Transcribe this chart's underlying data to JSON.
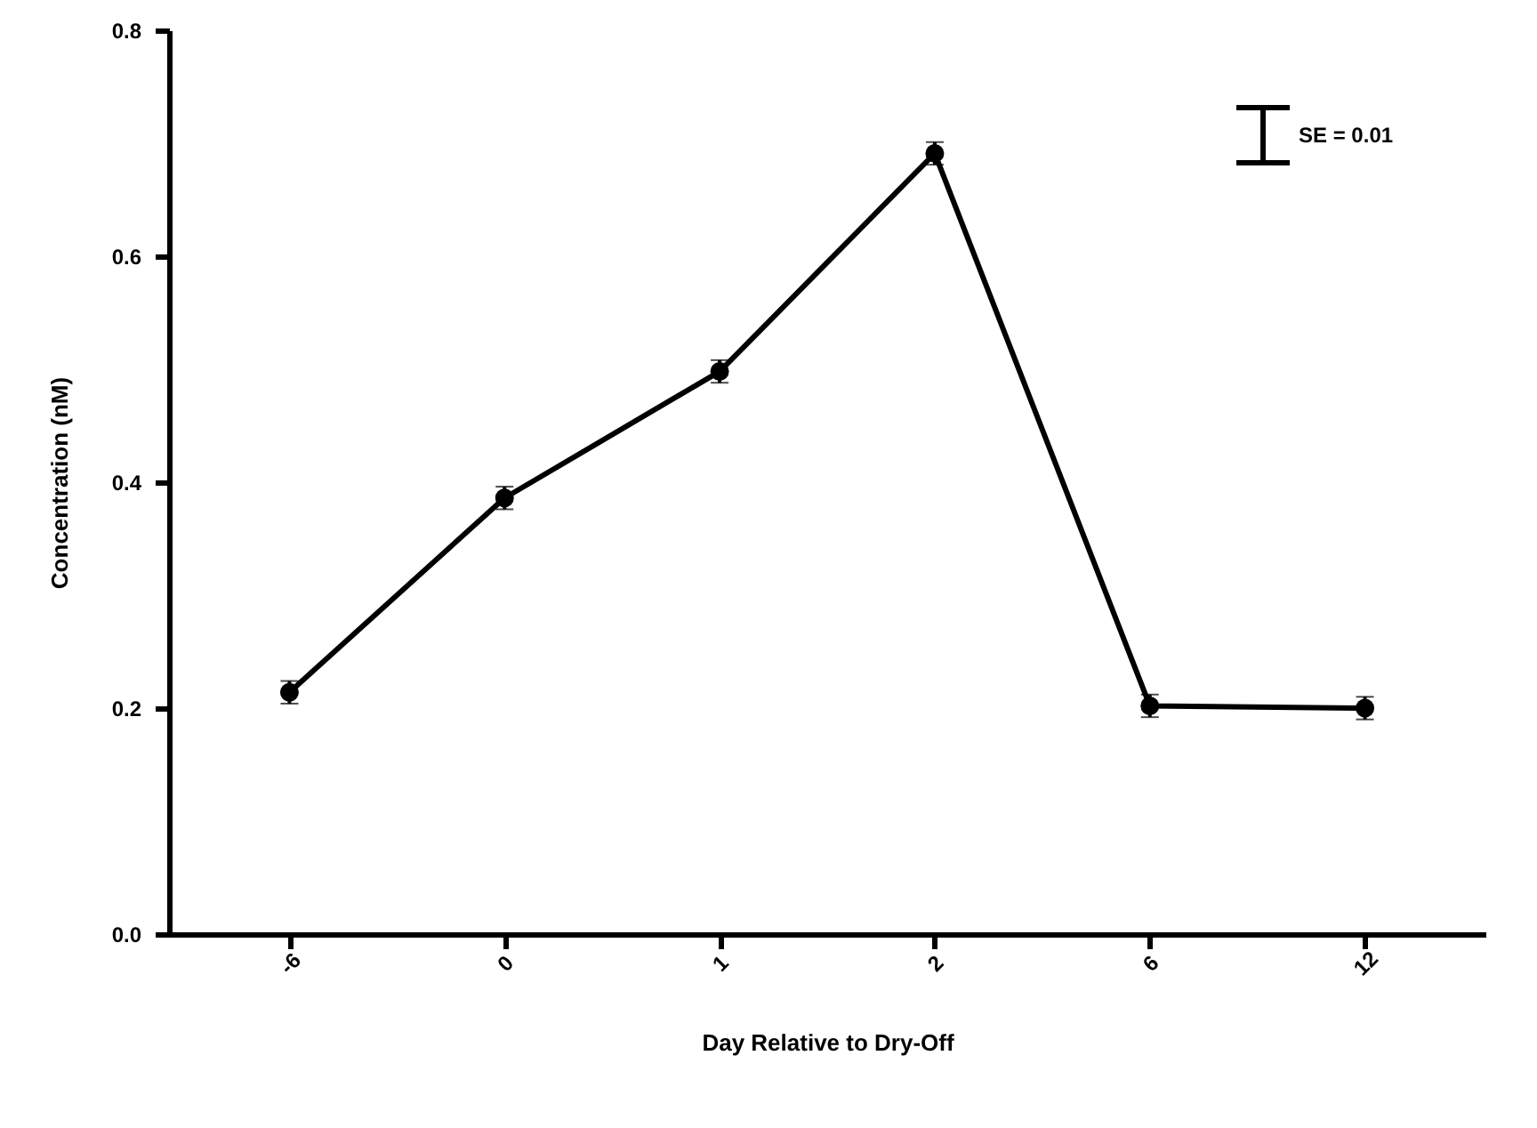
{
  "chart_data": {
    "type": "line",
    "xlabel": "Day Relative to Dry-Off",
    "ylabel": "Concentration (nM)",
    "categories": [
      "-6",
      "0",
      "1",
      "2",
      "6",
      "12"
    ],
    "series": [
      {
        "color": "#000000",
        "values": [
          0.214,
          0.386,
          0.498,
          0.691,
          0.202,
          0.2
        ],
        "errors": [
          0.01,
          0.01,
          0.01,
          0.01,
          0.01,
          0.01
        ]
      }
    ],
    "ylim": [
      0,
      0.8
    ],
    "yticks": [
      {
        "value": 0,
        "label": "0.0"
      },
      {
        "value": 0.2,
        "label": "0.2"
      },
      {
        "value": 0.4,
        "label": "0.4"
      },
      {
        "value": 0.6,
        "label": "0.6"
      },
      {
        "value": 0.8,
        "label": "0.8"
      }
    ],
    "grid": false,
    "marker": "circle",
    "line_style": "solid",
    "annotations": [
      "SE = 0.01"
    ]
  }
}
